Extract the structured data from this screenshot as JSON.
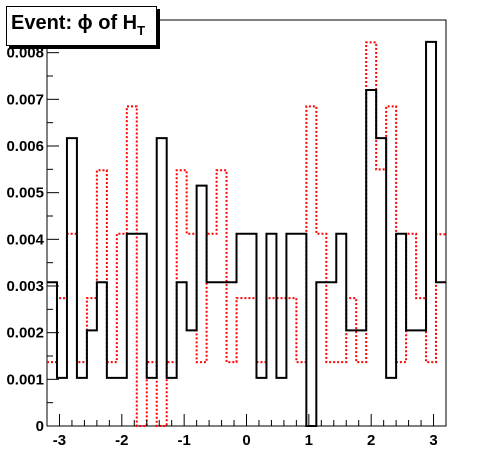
{
  "chart_data": {
    "type": "histogram",
    "title": {
      "main": "Event: ϕ of H",
      "subscript": "T"
    },
    "xlim": [
      -3.2,
      3.2
    ],
    "ylim": [
      0,
      0.0087
    ],
    "grid": false,
    "legend": "none",
    "x_ticks": [
      {
        "value": -3,
        "label": "-3"
      },
      {
        "value": -2,
        "label": "-2"
      },
      {
        "value": -1,
        "label": "-1"
      },
      {
        "value": 0,
        "label": "0"
      },
      {
        "value": 1,
        "label": "1"
      },
      {
        "value": 2,
        "label": "2"
      },
      {
        "value": 3,
        "label": "3"
      }
    ],
    "y_ticks": [
      {
        "value": 0,
        "label": "0"
      },
      {
        "value": 0.001,
        "label": "0.001"
      },
      {
        "value": 0.002,
        "label": "0.002"
      },
      {
        "value": 0.003,
        "label": "0.003"
      },
      {
        "value": 0.004,
        "label": "0.004"
      },
      {
        "value": 0.005,
        "label": "0.005"
      },
      {
        "value": 0.006,
        "label": "0.006"
      },
      {
        "value": 0.007,
        "label": "0.007"
      },
      {
        "value": 0.008,
        "label": "0.008"
      }
    ],
    "bin_edges": [
      -3.2,
      -3.04,
      -2.88,
      -2.72,
      -2.56,
      -2.4,
      -2.24,
      -2.08,
      -1.92,
      -1.76,
      -1.6,
      -1.44,
      -1.28,
      -1.12,
      -0.96,
      -0.8,
      -0.64,
      -0.48,
      -0.32,
      -0.16,
      0.0,
      0.16,
      0.32,
      0.48,
      0.64,
      0.8,
      0.96,
      1.12,
      1.28,
      1.44,
      1.6,
      1.76,
      1.92,
      2.08,
      2.24,
      2.4,
      2.56,
      2.72,
      2.88,
      3.04,
      3.2
    ],
    "series": [
      {
        "color": "#000000",
        "style": "solid",
        "values": [
          0.00308,
          0.00103,
          0.00617,
          0.00103,
          0.00205,
          0.00308,
          0.00103,
          0.00103,
          0.00412,
          0.00412,
          0.00103,
          0.00617,
          0.00103,
          0.00308,
          0.00205,
          0.00515,
          0.00308,
          0.00308,
          0.00308,
          0.00412,
          0.00412,
          0.00103,
          0.00412,
          0.00103,
          0.00412,
          0.00412,
          0.0,
          0.00308,
          0.00308,
          0.00412,
          0.00205,
          0.00205,
          0.0072,
          0.00617,
          0.00103,
          0.00412,
          0.00205,
          0.00205,
          0.00823,
          0.00308
        ]
      },
      {
        "color": "#ff0000",
        "style": "dotted",
        "values": [
          0.00137,
          0.00274,
          0.00412,
          0.00137,
          0.00274,
          0.00548,
          0.00137,
          0.00412,
          0.00685,
          0.0,
          0.00137,
          0.0,
          0.00137,
          0.00548,
          0.00412,
          0.00137,
          0.00412,
          0.00548,
          0.00137,
          0.00274,
          0.00274,
          0.00137,
          0.00274,
          0.00274,
          0.00274,
          0.00137,
          0.00685,
          0.00412,
          0.00137,
          0.00137,
          0.00274,
          0.00137,
          0.00822,
          0.0055,
          0.00685,
          0.00137,
          0.00412,
          0.00274,
          0.00137,
          0.00411
        ]
      }
    ]
  }
}
